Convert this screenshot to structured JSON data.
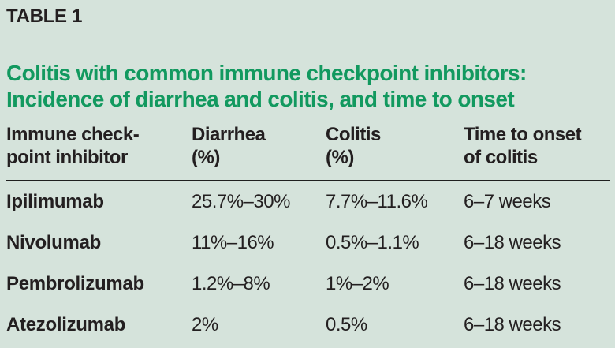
{
  "panel": {
    "kicker": "TABLE 1",
    "title_line1": "Colitis with common immune checkpoint inhibitors:",
    "title_line2": "Incidence of diarrhea and colitis, and time to onset"
  },
  "table": {
    "columns": [
      {
        "line1": "Immune check-",
        "line2": "point inhibitor"
      },
      {
        "line1": "Diarrhea",
        "line2": "(%)"
      },
      {
        "line1": "Colitis",
        "line2": "(%)"
      },
      {
        "line1": "Time to onset",
        "line2": "of colitis"
      }
    ],
    "rows": [
      {
        "drug": "Ipilimumab",
        "diarrhea": "25.7%–30%",
        "colitis": "7.7%–11.6%",
        "onset": "6–7 weeks"
      },
      {
        "drug": "Nivolumab",
        "diarrhea": "11%–16%",
        "colitis": "0.5%–1.1%",
        "onset": "6–18 weeks"
      },
      {
        "drug": "Pembrolizumab",
        "diarrhea": "1.2%–8%",
        "colitis": "1%–2%",
        "onset": "6–18 weeks"
      },
      {
        "drug": "Atezolizumab",
        "diarrhea": "2%",
        "colitis": "0.5%",
        "onset": "6–18 weeks"
      }
    ]
  },
  "colors": {
    "background": "#d5e3db",
    "title_green": "#12995f",
    "text_dark": "#231f20",
    "rule_dark": "#1f1f1f"
  }
}
